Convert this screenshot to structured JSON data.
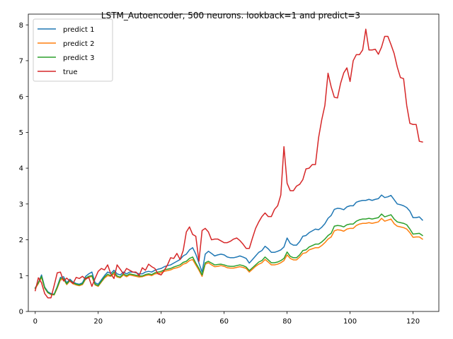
{
  "chart_data": {
    "type": "line",
    "title": "LSTM_Autoencoder, 500 neurons. lookback=1 and predict=3",
    "xlabel": "",
    "ylabel": "",
    "xlim": [
      -2.2,
      128.2
    ],
    "ylim": [
      0,
      8.3
    ],
    "x_ticks": [
      0,
      20,
      40,
      60,
      80,
      100,
      120
    ],
    "y_ticks": [
      0,
      1,
      2,
      3,
      4,
      5,
      6,
      7,
      8
    ],
    "grid": false,
    "legend_position": "top-left",
    "series": [
      {
        "name": "predict 1",
        "color": "#1f77b4",
        "values": [
          0.66,
          0.8,
          1.02,
          0.68,
          0.55,
          0.5,
          0.48,
          0.7,
          0.95,
          0.97,
          0.8,
          0.9,
          0.82,
          0.78,
          0.76,
          0.8,
          0.98,
          1.05,
          1.1,
          0.8,
          0.76,
          0.88,
          1.0,
          1.1,
          1.06,
          1.15,
          1.05,
          1.02,
          1.1,
          1.05,
          1.1,
          1.1,
          1.08,
          1.05,
          1.05,
          1.1,
          1.12,
          1.1,
          1.15,
          1.18,
          1.2,
          1.25,
          1.28,
          1.3,
          1.35,
          1.4,
          1.45,
          1.55,
          1.6,
          1.72,
          1.78,
          1.6,
          1.35,
          1.1,
          1.6,
          1.68,
          1.62,
          1.55,
          1.58,
          1.6,
          1.58,
          1.52,
          1.5,
          1.5,
          1.52,
          1.55,
          1.52,
          1.48,
          1.35,
          1.45,
          1.55,
          1.65,
          1.7,
          1.82,
          1.75,
          1.65,
          1.65,
          1.68,
          1.72,
          1.8,
          2.05,
          1.9,
          1.85,
          1.85,
          1.95,
          2.1,
          2.12,
          2.2,
          2.25,
          2.3,
          2.28,
          2.35,
          2.45,
          2.6,
          2.68,
          2.85,
          2.88,
          2.87,
          2.84,
          2.92,
          2.95,
          2.95,
          3.05,
          3.08,
          3.1,
          3.1,
          3.13,
          3.1,
          3.13,
          3.15,
          3.25,
          3.18,
          3.2,
          3.24,
          3.12,
          3.0,
          2.98,
          2.95,
          2.9,
          2.8,
          2.62,
          2.62,
          2.64,
          2.55
        ]
      },
      {
        "name": "predict 2",
        "color": "#ff7f0e",
        "values": [
          0.64,
          0.78,
          0.95,
          0.65,
          0.52,
          0.47,
          0.46,
          0.65,
          0.88,
          0.9,
          0.75,
          0.85,
          0.77,
          0.74,
          0.72,
          0.75,
          0.9,
          0.95,
          0.98,
          0.74,
          0.7,
          0.82,
          0.93,
          1.0,
          0.98,
          1.05,
          0.96,
          0.94,
          1.02,
          0.97,
          1.02,
          1.0,
          0.98,
          0.96,
          0.97,
          1.0,
          1.02,
          1.0,
          1.05,
          1.06,
          1.08,
          1.12,
          1.14,
          1.16,
          1.2,
          1.22,
          1.25,
          1.32,
          1.35,
          1.42,
          1.45,
          1.3,
          1.15,
          0.98,
          1.32,
          1.36,
          1.3,
          1.25,
          1.26,
          1.28,
          1.26,
          1.22,
          1.21,
          1.21,
          1.23,
          1.25,
          1.23,
          1.2,
          1.1,
          1.18,
          1.26,
          1.32,
          1.36,
          1.45,
          1.38,
          1.3,
          1.3,
          1.32,
          1.36,
          1.42,
          1.58,
          1.48,
          1.44,
          1.44,
          1.52,
          1.62,
          1.64,
          1.72,
          1.75,
          1.78,
          1.78,
          1.84,
          1.92,
          2.02,
          2.08,
          2.25,
          2.28,
          2.27,
          2.24,
          2.3,
          2.32,
          2.32,
          2.4,
          2.44,
          2.46,
          2.46,
          2.48,
          2.46,
          2.48,
          2.5,
          2.6,
          2.52,
          2.55,
          2.58,
          2.45,
          2.38,
          2.36,
          2.34,
          2.3,
          2.2,
          2.07,
          2.08,
          2.08,
          2.02
        ]
      },
      {
        "name": "predict 3",
        "color": "#2ca02c",
        "values": [
          0.65,
          0.8,
          0.98,
          0.66,
          0.53,
          0.48,
          0.47,
          0.68,
          0.92,
          0.92,
          0.77,
          0.87,
          0.8,
          0.76,
          0.74,
          0.77,
          0.93,
          0.98,
          1.0,
          0.76,
          0.72,
          0.84,
          0.96,
          1.04,
          1.0,
          1.1,
          0.99,
          0.96,
          1.05,
          1.0,
          1.05,
          1.03,
          1.01,
          0.99,
          0.99,
          1.03,
          1.05,
          1.03,
          1.08,
          1.1,
          1.12,
          1.16,
          1.18,
          1.2,
          1.24,
          1.27,
          1.3,
          1.37,
          1.4,
          1.48,
          1.52,
          1.35,
          1.2,
          1.02,
          1.36,
          1.4,
          1.35,
          1.3,
          1.31,
          1.32,
          1.3,
          1.27,
          1.26,
          1.26,
          1.28,
          1.3,
          1.28,
          1.24,
          1.14,
          1.22,
          1.3,
          1.38,
          1.42,
          1.52,
          1.44,
          1.36,
          1.36,
          1.38,
          1.42,
          1.48,
          1.66,
          1.54,
          1.5,
          1.5,
          1.58,
          1.7,
          1.72,
          1.8,
          1.84,
          1.88,
          1.88,
          1.94,
          2.02,
          2.12,
          2.18,
          2.38,
          2.4,
          2.39,
          2.36,
          2.42,
          2.44,
          2.44,
          2.52,
          2.56,
          2.58,
          2.58,
          2.6,
          2.58,
          2.6,
          2.62,
          2.72,
          2.64,
          2.67,
          2.7,
          2.58,
          2.5,
          2.48,
          2.46,
          2.42,
          2.3,
          2.16,
          2.17,
          2.18,
          2.12
        ]
      },
      {
        "name": "true",
        "color": "#d62728",
        "values": [
          0.58,
          0.94,
          0.8,
          0.5,
          0.38,
          0.38,
          0.72,
          1.08,
          1.1,
          0.85,
          0.93,
          0.85,
          0.78,
          0.95,
          0.92,
          0.98,
          0.9,
          0.95,
          0.7,
          0.92,
          1.12,
          1.2,
          1.16,
          1.3,
          1.05,
          0.92,
          1.3,
          1.18,
          1.05,
          1.2,
          1.15,
          1.1,
          1.1,
          1.0,
          1.22,
          1.15,
          1.32,
          1.25,
          1.2,
          1.05,
          1.02,
          1.15,
          1.3,
          1.5,
          1.48,
          1.62,
          1.45,
          1.7,
          2.22,
          2.36,
          2.15,
          2.1,
          1.4,
          2.26,
          2.32,
          2.22,
          2.0,
          2.02,
          2.02,
          1.97,
          1.92,
          1.92,
          1.96,
          2.02,
          2.05,
          1.98,
          1.88,
          1.76,
          1.76,
          2.05,
          2.32,
          2.5,
          2.65,
          2.75,
          2.65,
          2.65,
          2.85,
          2.95,
          3.25,
          4.6,
          3.58,
          3.37,
          3.37,
          3.5,
          3.55,
          3.68,
          3.98,
          4.0,
          4.1,
          4.1,
          4.85,
          5.35,
          5.75,
          6.65,
          6.27,
          5.98,
          5.96,
          6.37,
          6.66,
          6.8,
          6.42,
          7.0,
          7.17,
          7.17,
          7.3,
          7.88,
          7.3,
          7.3,
          7.32,
          7.18,
          7.38,
          7.68,
          7.68,
          7.45,
          7.2,
          6.82,
          6.53,
          6.5,
          5.75,
          5.25,
          5.22,
          5.22,
          4.75,
          4.73
        ]
      }
    ]
  }
}
